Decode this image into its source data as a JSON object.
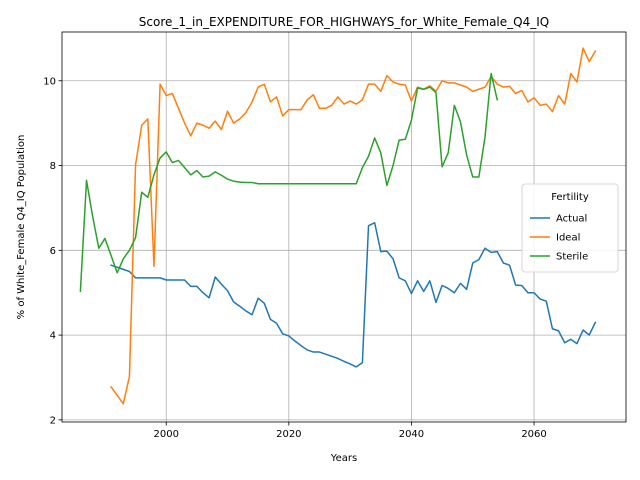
{
  "chart_data": {
    "type": "line",
    "title": "Score_1_in_EXPENDITURE_FOR_HIGHWAYS_for_White_Female_Q4_IQ",
    "xlabel": "Years",
    "ylabel": "% of White_Female Q4_IQ Population",
    "xlim": [
      1983,
      2075
    ],
    "ylim": [
      1.95,
      11.15
    ],
    "x_ticks": [
      2000,
      2020,
      2040,
      2060
    ],
    "y_ticks": [
      2,
      4,
      6,
      8,
      10
    ],
    "grid": true,
    "legend": {
      "title": "Fertility",
      "placement": "center-right"
    },
    "series": [
      {
        "name": "Actual",
        "color": "#1f77b4",
        "points": [
          [
            1991,
            5.65
          ],
          [
            1992,
            5.6
          ],
          [
            1993,
            5.55
          ],
          [
            1994,
            5.5
          ],
          [
            1995,
            5.35
          ],
          [
            1996,
            5.35
          ],
          [
            1997,
            5.35
          ],
          [
            1998,
            5.35
          ],
          [
            1999,
            5.35
          ],
          [
            2000,
            5.3
          ],
          [
            2001,
            5.3
          ],
          [
            2002,
            5.3
          ],
          [
            2003,
            5.3
          ],
          [
            2004,
            5.15
          ],
          [
            2005,
            5.15
          ],
          [
            2006,
            5.0
          ],
          [
            2007,
            4.88
          ],
          [
            2008,
            5.37
          ],
          [
            2009,
            5.2
          ],
          [
            2010,
            5.05
          ],
          [
            2011,
            4.78
          ],
          [
            2012,
            4.68
          ],
          [
            2013,
            4.57
          ],
          [
            2014,
            4.48
          ],
          [
            2015,
            4.87
          ],
          [
            2016,
            4.75
          ],
          [
            2017,
            4.37
          ],
          [
            2018,
            4.28
          ],
          [
            2019,
            4.03
          ],
          [
            2020,
            3.98
          ],
          [
            2021,
            3.86
          ],
          [
            2022,
            3.75
          ],
          [
            2023,
            3.65
          ],
          [
            2024,
            3.6
          ],
          [
            2025,
            3.6
          ],
          [
            2026,
            3.55
          ],
          [
            2027,
            3.5
          ],
          [
            2028,
            3.45
          ],
          [
            2029,
            3.38
          ],
          [
            2030,
            3.32
          ],
          [
            2031,
            3.25
          ],
          [
            2032,
            3.35
          ],
          [
            2033,
            6.58
          ],
          [
            2034,
            6.65
          ],
          [
            2035,
            5.97
          ],
          [
            2036,
            5.98
          ],
          [
            2037,
            5.8
          ],
          [
            2038,
            5.35
          ],
          [
            2039,
            5.28
          ],
          [
            2040,
            4.98
          ],
          [
            2041,
            5.28
          ],
          [
            2042,
            5.03
          ],
          [
            2043,
            5.28
          ],
          [
            2044,
            4.77
          ],
          [
            2045,
            5.17
          ],
          [
            2046,
            5.1
          ],
          [
            2047,
            5.0
          ],
          [
            2048,
            5.22
          ],
          [
            2049,
            5.08
          ],
          [
            2050,
            5.7
          ],
          [
            2051,
            5.78
          ],
          [
            2052,
            6.05
          ],
          [
            2053,
            5.95
          ],
          [
            2054,
            5.97
          ],
          [
            2055,
            5.7
          ],
          [
            2056,
            5.65
          ],
          [
            2057,
            5.18
          ],
          [
            2058,
            5.17
          ],
          [
            2059,
            5.0
          ],
          [
            2060,
            5.0
          ],
          [
            2061,
            4.85
          ],
          [
            2062,
            4.8
          ],
          [
            2063,
            4.15
          ],
          [
            2064,
            4.1
          ],
          [
            2065,
            3.82
          ],
          [
            2066,
            3.9
          ],
          [
            2067,
            3.8
          ],
          [
            2068,
            4.12
          ],
          [
            2069,
            4.0
          ],
          [
            2070,
            4.3
          ]
        ]
      },
      {
        "name": "Ideal",
        "color": "#ff7f0e",
        "points": [
          [
            1991,
            2.78
          ],
          [
            1992,
            2.58
          ],
          [
            1993,
            2.38
          ],
          [
            1994,
            3.02
          ],
          [
            1995,
            8.02
          ],
          [
            1996,
            8.95
          ],
          [
            1997,
            9.1
          ],
          [
            1998,
            5.62
          ],
          [
            1999,
            9.92
          ],
          [
            2000,
            9.65
          ],
          [
            2001,
            9.7
          ],
          [
            2002,
            9.35
          ],
          [
            2003,
            9.0
          ],
          [
            2004,
            8.7
          ],
          [
            2005,
            9.0
          ],
          [
            2006,
            8.95
          ],
          [
            2007,
            8.88
          ],
          [
            2008,
            9.05
          ],
          [
            2009,
            8.85
          ],
          [
            2010,
            9.28
          ],
          [
            2011,
            9.0
          ],
          [
            2012,
            9.1
          ],
          [
            2013,
            9.25
          ],
          [
            2014,
            9.5
          ],
          [
            2015,
            9.85
          ],
          [
            2016,
            9.92
          ],
          [
            2017,
            9.5
          ],
          [
            2018,
            9.62
          ],
          [
            2019,
            9.17
          ],
          [
            2020,
            9.32
          ],
          [
            2021,
            9.32
          ],
          [
            2022,
            9.32
          ],
          [
            2023,
            9.55
          ],
          [
            2024,
            9.67
          ],
          [
            2025,
            9.35
          ],
          [
            2026,
            9.35
          ],
          [
            2027,
            9.42
          ],
          [
            2028,
            9.62
          ],
          [
            2029,
            9.45
          ],
          [
            2030,
            9.52
          ],
          [
            2031,
            9.45
          ],
          [
            2032,
            9.55
          ],
          [
            2033,
            9.92
          ],
          [
            2034,
            9.92
          ],
          [
            2035,
            9.75
          ],
          [
            2036,
            10.12
          ],
          [
            2037,
            9.97
          ],
          [
            2038,
            9.92
          ],
          [
            2039,
            9.9
          ],
          [
            2040,
            9.52
          ],
          [
            2041,
            9.85
          ],
          [
            2042,
            9.8
          ],
          [
            2043,
            9.88
          ],
          [
            2044,
            9.75
          ],
          [
            2045,
            10.0
          ],
          [
            2046,
            9.95
          ],
          [
            2047,
            9.95
          ],
          [
            2048,
            9.9
          ],
          [
            2049,
            9.85
          ],
          [
            2050,
            9.75
          ],
          [
            2051,
            9.8
          ],
          [
            2052,
            9.85
          ],
          [
            2053,
            10.1
          ],
          [
            2054,
            9.92
          ],
          [
            2055,
            9.85
          ],
          [
            2056,
            9.87
          ],
          [
            2057,
            9.7
          ],
          [
            2058,
            9.77
          ],
          [
            2059,
            9.5
          ],
          [
            2060,
            9.6
          ],
          [
            2061,
            9.42
          ],
          [
            2062,
            9.45
          ],
          [
            2063,
            9.27
          ],
          [
            2064,
            9.65
          ],
          [
            2065,
            9.45
          ],
          [
            2066,
            10.17
          ],
          [
            2067,
            9.97
          ],
          [
            2068,
            10.77
          ],
          [
            2069,
            10.45
          ],
          [
            2070,
            10.7
          ]
        ]
      },
      {
        "name": "Sterile",
        "color": "#2ca02c",
        "points": [
          [
            1986,
            5.03
          ],
          [
            1987,
            7.65
          ],
          [
            1988,
            6.8
          ],
          [
            1989,
            6.05
          ],
          [
            1990,
            6.28
          ],
          [
            1991,
            5.88
          ],
          [
            1992,
            5.47
          ],
          [
            1993,
            5.8
          ],
          [
            1994,
            6.0
          ],
          [
            1995,
            6.3
          ],
          [
            1996,
            7.37
          ],
          [
            1997,
            7.25
          ],
          [
            1998,
            7.78
          ],
          [
            1999,
            8.18
          ],
          [
            2000,
            8.32
          ],
          [
            2001,
            8.07
          ],
          [
            2002,
            8.12
          ],
          [
            2003,
            7.95
          ],
          [
            2004,
            7.78
          ],
          [
            2005,
            7.88
          ],
          [
            2006,
            7.73
          ],
          [
            2007,
            7.75
          ],
          [
            2008,
            7.85
          ],
          [
            2009,
            7.77
          ],
          [
            2010,
            7.68
          ],
          [
            2011,
            7.63
          ],
          [
            2012,
            7.61
          ],
          [
            2013,
            7.6
          ],
          [
            2014,
            7.6
          ],
          [
            2015,
            7.57
          ],
          [
            2016,
            7.57
          ],
          [
            2017,
            7.57
          ],
          [
            2018,
            7.57
          ],
          [
            2019,
            7.57
          ],
          [
            2020,
            7.57
          ],
          [
            2021,
            7.57
          ],
          [
            2022,
            7.57
          ],
          [
            2023,
            7.57
          ],
          [
            2024,
            7.57
          ],
          [
            2025,
            7.57
          ],
          [
            2026,
            7.57
          ],
          [
            2027,
            7.57
          ],
          [
            2028,
            7.57
          ],
          [
            2029,
            7.57
          ],
          [
            2030,
            7.57
          ],
          [
            2031,
            7.57
          ],
          [
            2032,
            7.95
          ],
          [
            2033,
            8.22
          ],
          [
            2034,
            8.65
          ],
          [
            2035,
            8.3
          ],
          [
            2036,
            7.53
          ],
          [
            2037,
            8.0
          ],
          [
            2038,
            8.6
          ],
          [
            2039,
            8.62
          ],
          [
            2040,
            9.07
          ],
          [
            2041,
            9.83
          ],
          [
            2042,
            9.8
          ],
          [
            2043,
            9.85
          ],
          [
            2044,
            9.72
          ],
          [
            2045,
            7.97
          ],
          [
            2046,
            8.3
          ],
          [
            2047,
            9.42
          ],
          [
            2048,
            9.03
          ],
          [
            2049,
            8.25
          ],
          [
            2050,
            7.73
          ],
          [
            2051,
            7.73
          ],
          [
            2052,
            8.67
          ],
          [
            2053,
            10.17
          ],
          [
            2054,
            9.55
          ]
        ]
      }
    ]
  }
}
